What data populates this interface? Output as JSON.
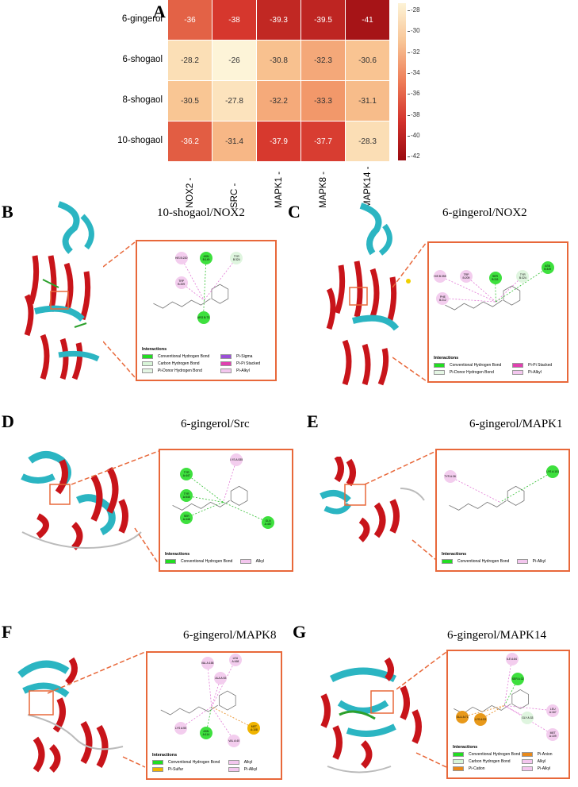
{
  "heatmap": {
    "letter": "A",
    "rows": [
      "6-gingerol",
      "6-shogaol",
      "8-shogaol",
      "10-shogaol"
    ],
    "cols": [
      "NOX2",
      "SRC",
      "MAPK1",
      "MAPK8",
      "MAPK14"
    ],
    "values": [
      [
        "-36",
        "-38",
        "-39.3",
        "-39.5",
        "-41"
      ],
      [
        "-28.2",
        "-26",
        "-30.8",
        "-32.3",
        "-30.6"
      ],
      [
        "-30.5",
        "-27.8",
        "-32.2",
        "-33.3",
        "-31.1"
      ],
      [
        "-36.2",
        "-31.4",
        "-37.9",
        "-37.7",
        "-28.3"
      ]
    ],
    "colorbar_ticks": [
      "-28",
      "-30",
      "-32",
      "-34",
      "-36",
      "-38",
      "-40",
      "-42"
    ]
  },
  "panels": [
    {
      "letter": "B",
      "title": "10-shogaol/NOX2",
      "legend_title": "Interactions",
      "legend": [
        "Conventional Hydrogen Bond",
        "Carbon Hydrogen Bond",
        "Pi-Donor Hydrogen Bond",
        "Pi-Sigma",
        "Pi-Pi Stacked",
        "Pi-Alkyl"
      ],
      "legend_colors": [
        "#22dd22",
        "#d8f5d8",
        "#e4f6e4",
        "#9b4fd8",
        "#e040b0",
        "#f3c6ee"
      ]
    },
    {
      "letter": "C",
      "title": "6-gingerol/NOX2",
      "legend_title": "Interactions",
      "legend": [
        "Conventional Hydrogen Bond",
        "Pi-Donor Hydrogen Bond",
        "Pi-Pi Stacked",
        "Pi-Alkyl"
      ],
      "legend_colors": [
        "#22dd22",
        "#e4f6e4",
        "#e040b0",
        "#f3c6ee"
      ]
    },
    {
      "letter": "D",
      "title": "6-gingerol/Src",
      "legend_title": "Interactions",
      "legend": [
        "Conventional Hydrogen Bond",
        "Alkyl"
      ],
      "legend_colors": [
        "#22dd22",
        "#f3c6ee"
      ]
    },
    {
      "letter": "E",
      "title": "6-gingerol/MAPK1",
      "legend_title": "Interactions",
      "legend": [
        "Conventional Hydrogen Bond",
        "Pi-Alkyl"
      ],
      "legend_colors": [
        "#22dd22",
        "#f3c6ee"
      ]
    },
    {
      "letter": "F",
      "title": "6-gingerol/MAPK8",
      "legend_title": "Interactions",
      "legend": [
        "Conventional Hydrogen Bond",
        "Pi-Sulfur",
        "Alkyl",
        "Pi-Alkyl"
      ],
      "legend_colors": [
        "#22dd22",
        "#f0b400",
        "#f3c6ee",
        "#f3c6ee"
      ]
    },
    {
      "letter": "G",
      "title": "6-gingerol/MAPK14",
      "legend_title": "Interactions",
      "legend": [
        "Conventional Hydrogen Bond",
        "Carbon Hydrogen Bond",
        "Pi-Cation",
        "Pi-Anion",
        "Alkyl",
        "Pi-Alkyl"
      ],
      "legend_colors": [
        "#22dd22",
        "#d8f5d8",
        "#e8891a",
        "#e8891a",
        "#f3c6ee",
        "#f3c6ee"
      ]
    }
  ],
  "residues": {
    "B": [
      {
        "label": "HIS B:220",
        "kind": "alkyl"
      },
      {
        "label": "TRP B:209",
        "kind": "alkyl"
      },
      {
        "label": "ASN B:149",
        "kind": "hbond"
      },
      {
        "label": "TYR B:324",
        "kind": "chbond"
      },
      {
        "label": "ARG B:73",
        "kind": "hbond"
      }
    ],
    "C": [
      {
        "label": "HIS B:355",
        "kind": "alkyl"
      },
      {
        "label": "TRP B:209",
        "kind": "alkyl"
      },
      {
        "label": "PHE B:212",
        "kind": "alkyl"
      },
      {
        "label": "SER B:311",
        "kind": "hbond"
      },
      {
        "label": "TYR B:324",
        "kind": "chbond"
      },
      {
        "label": "ASN B:349",
        "kind": "hbond"
      }
    ],
    "D": [
      {
        "label": "TYR A:447",
        "kind": "hbond"
      },
      {
        "label": "TYR A:545",
        "kind": "hbond"
      },
      {
        "label": "SER A:448",
        "kind": "hbond"
      },
      {
        "label": "LYS A:535",
        "kind": "alkyl"
      },
      {
        "label": "GLN A:457",
        "kind": "hbond"
      }
    ],
    "E": [
      {
        "label": "TYR A:36",
        "kind": "alkyl"
      },
      {
        "label": "LYS A:151",
        "kind": "hbond"
      }
    ],
    "F": [
      {
        "label": "VAL A:158",
        "kind": "alkyl"
      },
      {
        "label": "LEU A:168",
        "kind": "alkyl"
      },
      {
        "label": "ALA A:53",
        "kind": "alkyl"
      },
      {
        "label": "LYS A:55",
        "kind": "alkyl"
      },
      {
        "label": "ASN A:114",
        "kind": "hbond"
      },
      {
        "label": "VAL A:40",
        "kind": "alkyl"
      },
      {
        "label": "MET A:108",
        "kind": "sulfur"
      }
    ],
    "G": [
      {
        "label": "ILE A:84",
        "kind": "alkyl"
      },
      {
        "label": "SER A:32",
        "kind": "hbond"
      },
      {
        "label": "LEU A:167",
        "kind": "alkyl"
      },
      {
        "label": "GLU A:71",
        "kind": "cation"
      },
      {
        "label": "LYS A:53",
        "kind": "cation"
      },
      {
        "label": "GLY A:33",
        "kind": "chbond"
      },
      {
        "label": "MET A:109",
        "kind": "alkyl"
      }
    ]
  }
}
